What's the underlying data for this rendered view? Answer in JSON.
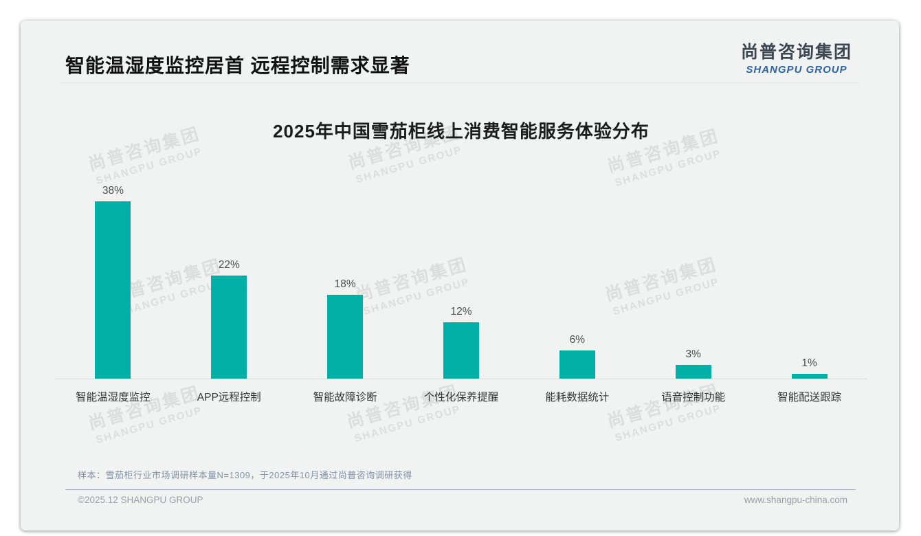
{
  "page": {
    "title": "智能温湿度监控居首 远程控制需求显著",
    "logo": {
      "cn": "尚普咨询集团",
      "en": "SHANGPU GROUP"
    },
    "watermark": {
      "line1": "尚普咨询集团",
      "line2": "SHANGPU GROUP"
    },
    "footer": {
      "sample_note": "样本：雪茄柜行业市场调研样本量N=1309，于2025年10月通过尚普咨询调研获得",
      "copyright": "©2025.12 SHANGPU GROUP",
      "website": "www.shangpu-china.com"
    }
  },
  "colors": {
    "bar": "#00AFA6",
    "logo_blue": "#31639E",
    "card_background": "#F1F2F2",
    "value_label": "#4D4D4D",
    "footer_divider": "#A3B2C6"
  },
  "chart_data": {
    "type": "bar",
    "title": "2025年中国雪茄柜线上消费智能服务体验分布",
    "categories": [
      "智能温湿度监控",
      "APP远程控制",
      "智能故障诊断",
      "个性化保养提醒",
      "能耗数据统计",
      "语音控制功能",
      "智能配送跟踪"
    ],
    "values": [
      38,
      22,
      18,
      12,
      6,
      3,
      1
    ],
    "value_labels": [
      "38%",
      "22%",
      "18%",
      "12%",
      "6%",
      "3%",
      "1%"
    ],
    "unit": "%",
    "bar_color": "#00AFA6",
    "ylim": [
      0,
      42
    ],
    "grid": false,
    "legend": "none",
    "xlabel": "",
    "ylabel": ""
  }
}
